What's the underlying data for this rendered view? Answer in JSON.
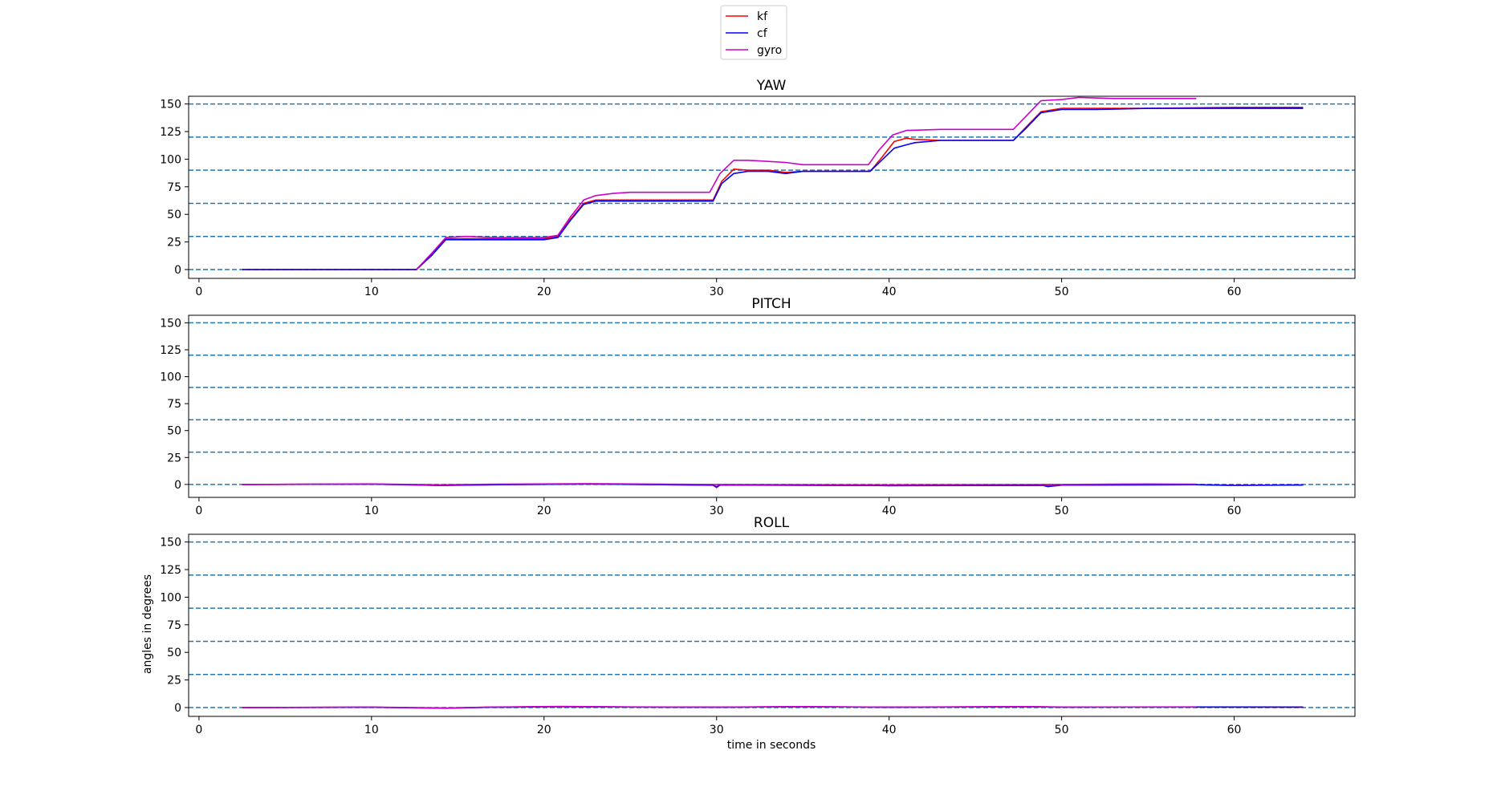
{
  "legend": [
    {
      "name": "kf",
      "color": "#ff0000"
    },
    {
      "name": "cf",
      "color": "#0000ff"
    },
    {
      "name": "gyro",
      "color": "#cc00cc"
    }
  ],
  "reference_line_color": "#1f77b4",
  "chart_data": [
    {
      "type": "line",
      "title": "YAW",
      "xlabel": "",
      "ylabel": "",
      "xlim": [
        -0.6,
        67
      ],
      "ylim": [
        -8,
        157
      ],
      "xticks": [
        0,
        10,
        20,
        30,
        40,
        50,
        60
      ],
      "yticks": [
        0,
        25,
        50,
        75,
        100,
        125,
        150
      ],
      "reference_lines_y": [
        0,
        30,
        60,
        90,
        120,
        150
      ],
      "series": [
        {
          "name": "kf",
          "color": "#ff0000",
          "x": [
            2.5,
            10,
            12.6,
            13.5,
            14.3,
            15.5,
            17,
            20,
            20.8,
            21.5,
            22.3,
            23,
            23.8,
            25,
            27,
            29.8,
            30.3,
            31,
            31.8,
            33,
            34,
            35,
            37,
            38.9,
            39.5,
            40.3,
            41,
            41.5,
            43,
            45,
            47.2,
            48,
            48.8,
            50,
            52,
            55,
            60,
            64
          ],
          "y": [
            0,
            0,
            0,
            14,
            28,
            28,
            28,
            28,
            30,
            45,
            60,
            63,
            63,
            63,
            63,
            63,
            80,
            91,
            90,
            90,
            88,
            89,
            89,
            89,
            100,
            116,
            119,
            118,
            117,
            117,
            117,
            130,
            143,
            146,
            146,
            146,
            147,
            147
          ]
        },
        {
          "name": "cf",
          "color": "#0000ff",
          "x": [
            2.5,
            10,
            12.6,
            13.5,
            14.3,
            15.5,
            17,
            20,
            20.8,
            21.5,
            22.3,
            23,
            23.8,
            25,
            27,
            29.8,
            30.3,
            31,
            31.8,
            33,
            34,
            35,
            37,
            38.9,
            39.5,
            40.3,
            41,
            41.5,
            43,
            45,
            47.2,
            48,
            48.8,
            50,
            52,
            55,
            60,
            64
          ],
          "y": [
            0,
            0,
            0,
            13,
            27,
            27,
            27,
            27,
            29,
            44,
            59,
            62,
            62,
            62,
            62,
            62,
            78,
            87,
            89,
            89,
            87,
            89,
            89,
            89,
            98,
            110,
            113,
            115,
            117,
            117,
            117,
            129,
            142,
            145,
            145,
            146,
            146,
            146
          ]
        },
        {
          "name": "gyro",
          "color": "#cc00cc",
          "x": [
            12.6,
            13.5,
            14.3,
            15.5,
            17,
            20,
            20.8,
            21.5,
            22.3,
            23,
            24,
            25,
            27,
            29.6,
            30.2,
            31,
            31.8,
            33,
            34,
            35,
            37,
            38.8,
            39.4,
            40.2,
            41,
            43,
            45,
            47.2,
            48,
            48.8,
            50,
            51,
            53,
            55,
            57.8
          ],
          "y": [
            0,
            15,
            29,
            30,
            29,
            29,
            31,
            47,
            63,
            67,
            69,
            70,
            70,
            70,
            87,
            99,
            99,
            98,
            97,
            95,
            95,
            95,
            108,
            122,
            126,
            127,
            127,
            127,
            140,
            153,
            154,
            156,
            155,
            155,
            155
          ]
        }
      ]
    },
    {
      "type": "line",
      "title": "PITCH",
      "xlabel": "",
      "ylabel": "",
      "xlim": [
        -0.6,
        67
      ],
      "ylim": [
        -12,
        157
      ],
      "xticks": [
        0,
        10,
        20,
        30,
        40,
        50,
        60
      ],
      "yticks": [
        0,
        25,
        50,
        75,
        100,
        125,
        150
      ],
      "reference_lines_y": [
        0,
        30,
        60,
        90,
        120,
        150
      ],
      "series": [
        {
          "name": "kf",
          "color": "#ff0000",
          "x": [
            2.5,
            10,
            14,
            17,
            22.5,
            29.8,
            30,
            30.2,
            39,
            40,
            49,
            49.3,
            50,
            57.8,
            60,
            64
          ],
          "y": [
            0,
            0.3,
            -0.8,
            -0.2,
            0.4,
            -0.6,
            -3,
            -0.5,
            -0.8,
            -1,
            -0.8,
            -1.2,
            -0.6,
            -0.2,
            -0.8,
            -0.5
          ]
        },
        {
          "name": "cf",
          "color": "#0000ff",
          "x": [
            2.5,
            10,
            14,
            17,
            22.5,
            29.8,
            30,
            30.2,
            39,
            40,
            48.9,
            49.2,
            50,
            57.8,
            60,
            64
          ],
          "y": [
            0,
            0.3,
            -0.9,
            -0.3,
            0.4,
            -0.7,
            -2,
            -0.5,
            -0.9,
            -1.1,
            -0.8,
            -2,
            -0.6,
            -0.2,
            -0.8,
            -0.5
          ]
        },
        {
          "name": "gyro",
          "color": "#cc00cc",
          "x": [
            2.5,
            10,
            14,
            17,
            22.5,
            30,
            40,
            50,
            55,
            57.8
          ],
          "y": [
            0,
            0.5,
            -0.3,
            0.3,
            0.7,
            0,
            -0.3,
            0,
            0.4,
            0.3
          ]
        }
      ]
    },
    {
      "type": "line",
      "title": "ROLL",
      "xlabel": "time in seconds",
      "ylabel": "angles in degrees",
      "xlim": [
        -0.6,
        67
      ],
      "ylim": [
        -8,
        157
      ],
      "xticks": [
        0,
        10,
        20,
        30,
        40,
        50,
        60
      ],
      "yticks": [
        0,
        25,
        50,
        75,
        100,
        125,
        150
      ],
      "reference_lines_y": [
        0,
        30,
        60,
        90,
        120,
        150
      ],
      "series": [
        {
          "name": "kf",
          "color": "#ff0000",
          "x": [
            2.5,
            10,
            14.3,
            17,
            21,
            25,
            30,
            35,
            40,
            48,
            50,
            57.8,
            64
          ],
          "y": [
            0,
            0.3,
            -0.5,
            0.4,
            0.8,
            0.5,
            0.3,
            0.8,
            0.3,
            0.8,
            0.4,
            0.5,
            0.4
          ]
        },
        {
          "name": "cf",
          "color": "#0000ff",
          "x": [
            2.5,
            10,
            14.3,
            17,
            21,
            25,
            30,
            35,
            40,
            48,
            50,
            57.8,
            64
          ],
          "y": [
            0,
            0.3,
            -0.6,
            0.3,
            0.9,
            0.5,
            0.3,
            0.8,
            0.3,
            0.7,
            0.4,
            0.5,
            0.4
          ]
        },
        {
          "name": "gyro",
          "color": "#cc00cc",
          "x": [
            2.5,
            10,
            14.3,
            17,
            21,
            25,
            30,
            35,
            40,
            48,
            50,
            57.8
          ],
          "y": [
            0,
            0.4,
            -0.4,
            0.5,
            1,
            0.6,
            0.4,
            0.9,
            0.4,
            0.9,
            0.5,
            0.6
          ]
        }
      ]
    }
  ]
}
